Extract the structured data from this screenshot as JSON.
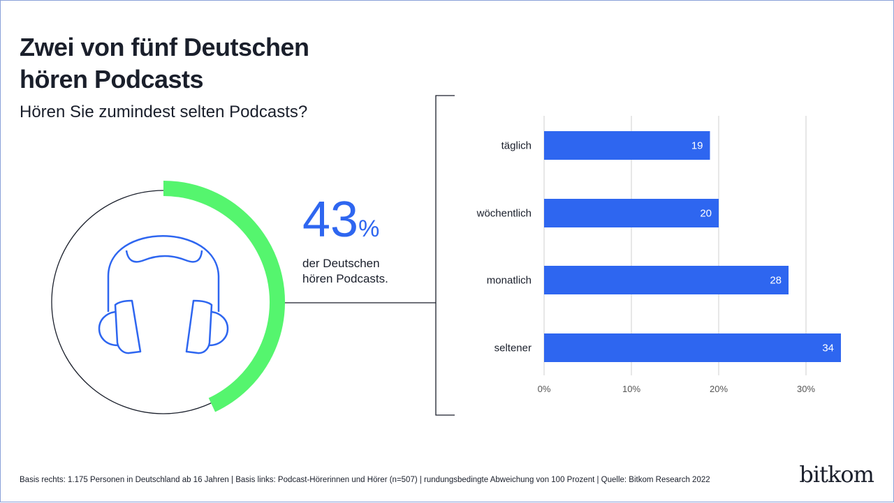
{
  "title": "Zwei von fünf Deutschen hören Podcasts",
  "subtitle": "Hören Sie zumindest selten Podcasts?",
  "headline": {
    "value": "43",
    "unit": "%",
    "fraction": 0.43,
    "text_line1": "der Deutschen",
    "text_line2": "hören Podcasts."
  },
  "icon": "headphones-icon",
  "colors": {
    "bar": "#2e66f0",
    "ring": "#55f56e",
    "text": "#1a1f2b"
  },
  "chart_data": {
    "type": "bar",
    "orientation": "horizontal",
    "categories": [
      "täglich",
      "wöchentlich",
      "monatlich",
      "seltener"
    ],
    "values": [
      19,
      20,
      28,
      34
    ],
    "xlim": [
      0,
      35
    ],
    "ticks": [
      0,
      10,
      20,
      30
    ],
    "tick_labels": [
      "0%",
      "10%",
      "20%",
      "30%"
    ],
    "grid": true
  },
  "footer": "Basis rechts: 1.175 Personen in Deutschland ab 16 Jahren | Basis links: Podcast-Hörerinnen und Hörer (n=507) | rundungsbedingte Abweichung von 100 Prozent | Quelle: Bitkom Research 2022",
  "logo": "bitkom"
}
